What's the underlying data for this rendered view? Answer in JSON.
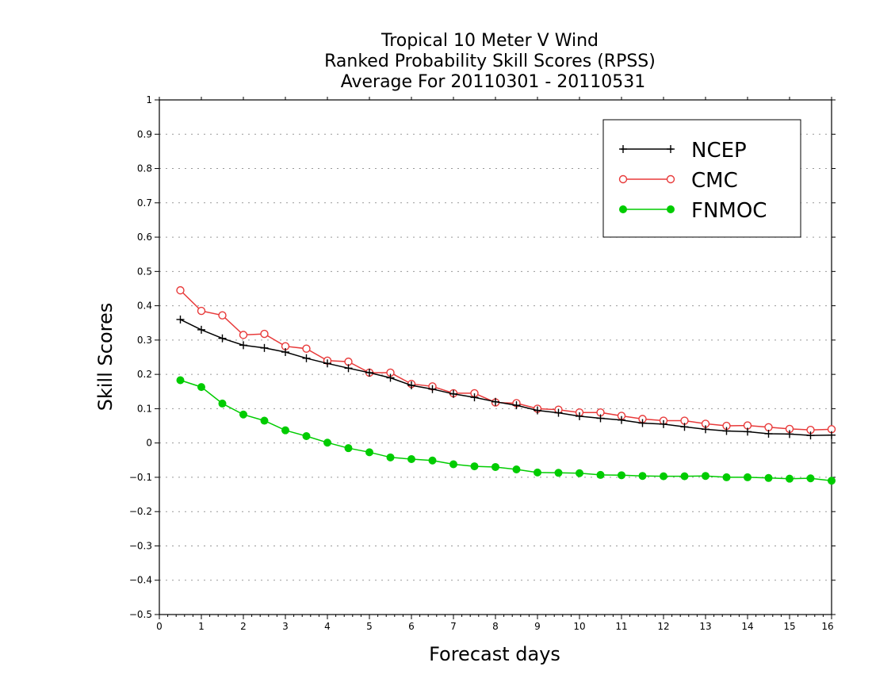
{
  "chart_data": {
    "type": "line",
    "title": [
      "Tropical 10 Meter V Wind",
      "Ranked Probability Skill Scores (RPSS)",
      "Average For 20110301 - 20110531"
    ],
    "xlabel": "Forecast days",
    "ylabel": "Skill Scores",
    "xlim": [
      0,
      16
    ],
    "ylim": [
      -0.5,
      1
    ],
    "x_ticks": [
      "0",
      "1",
      "2",
      "3",
      "4",
      "5",
      "6",
      "7",
      "8",
      "9",
      "10",
      "11",
      "12",
      "13",
      "14",
      "15",
      "16"
    ],
    "y_ticks": [
      "−0.5",
      "−0.4",
      "−0.3",
      "−0.2",
      "−0.1",
      "0",
      "0.1",
      "0.2",
      "0.3",
      "0.4",
      "0.5",
      "0.6",
      "0.7",
      "0.8",
      "0.9",
      "1"
    ],
    "grid": "horizontal dotted",
    "legend_position": "top-right",
    "x": [
      0.5,
      1,
      1.5,
      2,
      2.5,
      3,
      3.5,
      4,
      4.5,
      5,
      5.5,
      6,
      6.5,
      7,
      7.5,
      8,
      8.5,
      9,
      9.5,
      10,
      10.5,
      11,
      11.5,
      12,
      12.5,
      13,
      13.5,
      14,
      14.5,
      15,
      15.5,
      16
    ],
    "series": [
      {
        "name": "NCEP",
        "color": "#000000",
        "marker": "plus",
        "values": [
          0.36,
          0.33,
          0.305,
          0.285,
          0.277,
          0.265,
          0.247,
          0.232,
          0.218,
          0.205,
          0.19,
          0.168,
          0.157,
          0.143,
          0.133,
          0.12,
          0.11,
          0.095,
          0.088,
          0.078,
          0.072,
          0.067,
          0.058,
          0.055,
          0.047,
          0.04,
          0.035,
          0.033,
          0.027,
          0.026,
          0.022,
          0.023
        ]
      },
      {
        "name": "CMC",
        "color": "#e83a3a",
        "marker": "open-circle",
        "values": [
          0.445,
          0.385,
          0.372,
          0.315,
          0.318,
          0.282,
          0.275,
          0.24,
          0.237,
          0.205,
          0.205,
          0.172,
          0.165,
          0.145,
          0.145,
          0.118,
          0.116,
          0.1,
          0.097,
          0.089,
          0.089,
          0.079,
          0.07,
          0.065,
          0.065,
          0.056,
          0.05,
          0.051,
          0.046,
          0.041,
          0.038,
          0.04
        ]
      },
      {
        "name": "FNMOC",
        "color": "#00cc00",
        "marker": "filled-circle",
        "values": [
          0.183,
          0.163,
          0.115,
          0.083,
          0.065,
          0.037,
          0.02,
          0.001,
          -0.015,
          -0.027,
          -0.042,
          -0.047,
          -0.051,
          -0.062,
          -0.068,
          -0.07,
          -0.077,
          -0.086,
          -0.087,
          -0.088,
          -0.093,
          -0.094,
          -0.096,
          -0.097,
          -0.097,
          -0.096,
          -0.1,
          -0.1,
          -0.102,
          -0.104,
          -0.103,
          -0.11
        ]
      }
    ]
  }
}
